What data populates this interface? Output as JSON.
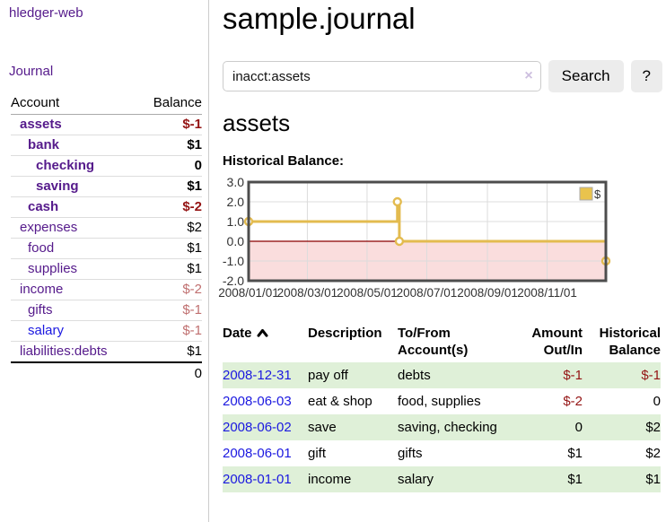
{
  "sidebar": {
    "app_title": "hledger-web",
    "journal_label": "Journal",
    "accounts_table": {
      "account_header": "Account",
      "balance_header": "Balance",
      "rows": [
        {
          "name": "assets",
          "balance": "$-1",
          "indent": 0,
          "bold": true,
          "balance_style": "neg-strong"
        },
        {
          "name": "bank",
          "balance": "$1",
          "indent": 1,
          "bold": true,
          "balance_style": "pos"
        },
        {
          "name": "checking",
          "balance": "0",
          "indent": 2,
          "bold": true,
          "balance_style": "pos"
        },
        {
          "name": "saving",
          "balance": "$1",
          "indent": 2,
          "bold": true,
          "balance_style": "pos"
        },
        {
          "name": "cash",
          "balance": "$-2",
          "indent": 1,
          "bold": true,
          "balance_style": "neg-strong"
        },
        {
          "name": "expenses",
          "balance": "$2",
          "indent": 0,
          "bold": false,
          "balance_style": "pos"
        },
        {
          "name": "food",
          "balance": "$1",
          "indent": 1,
          "bold": false,
          "balance_style": "pos"
        },
        {
          "name": "supplies",
          "balance": "$1",
          "indent": 1,
          "bold": false,
          "balance_style": "pos"
        },
        {
          "name": "income",
          "balance": "$-2",
          "indent": 0,
          "bold": false,
          "balance_style": "neg-soft"
        },
        {
          "name": "gifts",
          "balance": "$-1",
          "indent": 1,
          "bold": false,
          "balance_style": "neg-soft"
        },
        {
          "name": "salary",
          "balance": "$-1",
          "indent": 1,
          "bold": false,
          "balance_style": "neg-soft",
          "link_style": "unvisited"
        },
        {
          "name": "liabilities:debts",
          "balance": "$1",
          "indent": 0,
          "bold": false,
          "balance_style": "pos"
        }
      ],
      "total": "0"
    }
  },
  "header": {
    "title": "sample.journal"
  },
  "search": {
    "value": "inacct:assets",
    "clear_icon": "×",
    "button_label": "Search",
    "help_label": "?"
  },
  "main": {
    "account_heading": "assets",
    "chart_label": "Historical Balance:"
  },
  "chart_data": {
    "type": "line",
    "step": true,
    "title": "",
    "xlabel": "",
    "ylabel": "",
    "x_domain": [
      "2008-01-01",
      "2008-12-31"
    ],
    "y_domain": [
      -2,
      3
    ],
    "x_ticks": [
      {
        "label": "2008/01/01",
        "date": "2008-01-01"
      },
      {
        "label": "2008/03/01",
        "date": "2008-03-01"
      },
      {
        "label": "2008/05/01",
        "date": "2008-05-01"
      },
      {
        "label": "2008/07/01",
        "date": "2008-07-01"
      },
      {
        "label": "2008/09/01",
        "date": "2008-09-01"
      },
      {
        "label": "2008/11/01",
        "date": "2008-11-01"
      }
    ],
    "y_ticks": [
      {
        "label": "3.0",
        "value": 3
      },
      {
        "label": "2.0",
        "value": 2
      },
      {
        "label": "1.0",
        "value": 1
      },
      {
        "label": "0.0",
        "value": 0
      },
      {
        "label": "-1.0",
        "value": -1
      },
      {
        "label": "-2.0",
        "value": -2
      }
    ],
    "series": [
      {
        "name": "$",
        "color": "#e3bb4f",
        "marker": "open-circle",
        "points": [
          {
            "date": "2008-01-01",
            "value": 1
          },
          {
            "date": "2008-06-01",
            "value": 2
          },
          {
            "date": "2008-06-03",
            "value": 0
          },
          {
            "date": "2008-12-31",
            "value": -1
          }
        ]
      }
    ],
    "legend": {
      "position": "top-right",
      "entries": [
        {
          "label": "$",
          "color": "#e9c34d"
        }
      ]
    },
    "grid": true,
    "negative_region_fill": "#fadddd",
    "zero_line_color": "#8b0000",
    "border_color": "#4d4d4d",
    "gridline_color": "#dcdcdc",
    "tick_label_color": "#333333"
  },
  "register": {
    "headers": {
      "date": "Date",
      "description": "Description",
      "accounts": "To/From Account(s)",
      "amount": "Amount Out/In",
      "balance": "Historical Balance"
    },
    "rows": [
      {
        "date": "2008-12-31",
        "description": "pay off",
        "accounts": "debts",
        "amount": "$-1",
        "amount_neg": true,
        "balance": "$-1",
        "balance_neg": true,
        "highlight": true
      },
      {
        "date": "2008-06-03",
        "description": "eat & shop",
        "accounts": "food, supplies",
        "amount": "$-2",
        "amount_neg": true,
        "balance": "0",
        "balance_neg": false,
        "highlight": false
      },
      {
        "date": "2008-06-02",
        "description": "save",
        "accounts": "saving, checking",
        "amount": "0",
        "amount_neg": false,
        "balance": "$2",
        "balance_neg": false,
        "highlight": true
      },
      {
        "date": "2008-06-01",
        "description": "gift",
        "accounts": "gifts",
        "amount": "$1",
        "amount_neg": false,
        "balance": "$2",
        "balance_neg": false,
        "highlight": false
      },
      {
        "date": "2008-01-01",
        "description": "income",
        "accounts": "salary",
        "amount": "$1",
        "amount_neg": false,
        "balance": "$1",
        "balance_neg": false,
        "highlight": true
      }
    ]
  },
  "colors": {
    "visited_link_purple": "#551A8B",
    "link_blue": "#1b18e0",
    "negative_red": "#941414",
    "negative_soft_red": "#c07070",
    "row_highlight_green": "#dff0d8",
    "chart_gold": "#e3bb4f",
    "button_gray": "#ececec"
  }
}
